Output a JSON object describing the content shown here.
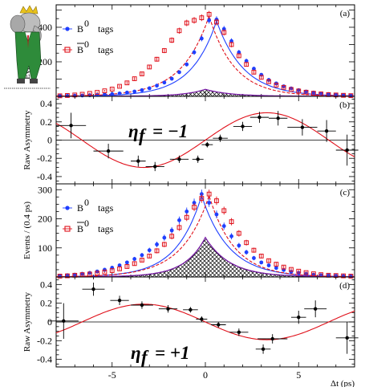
{
  "chart_data": [
    {
      "panel": "(a)",
      "type": "scatter",
      "ylabel": "Events / (0.4 ps)",
      "xlim": [
        -8,
        8
      ],
      "ylim": [
        0,
        530
      ],
      "yticks": [
        200,
        400
      ],
      "xticks": [
        -5,
        0,
        5
      ],
      "show_xtick_labels": false,
      "legend": [
        {
          "label": "B",
          "superscript": "0",
          "bar": false,
          "suffix": "tags",
          "marker": "filled-circle",
          "color": "#1f3fff"
        },
        {
          "label": "B",
          "superscript": "0",
          "bar": true,
          "suffix": "tags",
          "marker": "open-square",
          "color": "#e0101a"
        }
      ],
      "series": [
        {
          "name": "B0 tags",
          "color": "#1f3fff",
          "marker": "filled-circle",
          "x": [
            -7.8,
            -7.4,
            -7,
            -6.6,
            -6.2,
            -5.8,
            -5.4,
            -5,
            -4.6,
            -4.2,
            -3.8,
            -3.4,
            -3,
            -2.6,
            -2.2,
            -1.8,
            -1.4,
            -1,
            -0.6,
            -0.2,
            0.2,
            0.6,
            1,
            1.4,
            1.8,
            2.2,
            2.6,
            3,
            3.4,
            3.8,
            4.2,
            4.6,
            5,
            5.4,
            5.8,
            6.2,
            6.6,
            7,
            7.4,
            7.8
          ],
          "y": [
            2,
            3,
            4,
            5,
            6,
            8,
            10,
            13,
            17,
            22,
            28,
            36,
            47,
            62,
            80,
            102,
            140,
            185,
            255,
            335,
            440,
            445,
            390,
            320,
            255,
            205,
            160,
            125,
            95,
            75,
            58,
            46,
            36,
            28,
            22,
            17,
            13,
            10,
            7,
            5
          ]
        },
        {
          "name": "B0bar tags",
          "color": "#e0101a",
          "marker": "open-square",
          "x": [
            -7.8,
            -7.4,
            -7,
            -6.6,
            -6.2,
            -5.8,
            -5.4,
            -5,
            -4.6,
            -4.2,
            -3.8,
            -3.4,
            -3,
            -2.6,
            -2.2,
            -1.8,
            -1.4,
            -1,
            -0.6,
            -0.2,
            0.2,
            0.6,
            1,
            1.4,
            1.8,
            2.2,
            2.6,
            3,
            3.4,
            3.8,
            4.2,
            4.6,
            5,
            5.4,
            5.8,
            6.2,
            6.6,
            7,
            7.4,
            7.8
          ],
          "y": [
            3,
            5,
            8,
            12,
            17,
            23,
            32,
            42,
            58,
            78,
            102,
            130,
            170,
            215,
            265,
            325,
            380,
            425,
            440,
            455,
            475,
            430,
            370,
            300,
            235,
            185,
            140,
            110,
            85,
            65,
            52,
            40,
            31,
            24,
            18,
            14,
            10,
            8,
            6,
            4
          ]
        }
      ],
      "fit_curves": [
        {
          "series": "B0 tags",
          "style": "solid",
          "color": "#1f3fff"
        },
        {
          "series": "B0bar tags",
          "style": "dashed",
          "color": "#e0101a"
        }
      ],
      "background": {
        "style": "hatched",
        "peak": 40
      }
    },
    {
      "panel": "(b)",
      "type": "scatter",
      "ylabel": "Raw Asymmetry",
      "annotation": {
        "text": "η",
        "subscript": "f",
        "value": "= −1"
      },
      "xlim": [
        -8,
        8
      ],
      "ylim": [
        -0.48,
        0.48
      ],
      "yticks": [
        -0.4,
        -0.2,
        0,
        0.2,
        0.4
      ],
      "ytick_labels": [
        "-0.4",
        "-0.2",
        "0",
        "0.2",
        "0.4"
      ],
      "xticks": [
        -5,
        0,
        5
      ],
      "show_xtick_labels": false,
      "points": [
        {
          "x": -7.2,
          "y": 0.16,
          "xerr": 0.8,
          "yerr": 0.14
        },
        {
          "x": -5.2,
          "y": -0.12,
          "xerr": 0.8,
          "yerr": 0.08
        },
        {
          "x": -3.6,
          "y": -0.23,
          "xerr": 0.4,
          "yerr": 0.06
        },
        {
          "x": -2.7,
          "y": -0.29,
          "xerr": 0.5,
          "yerr": 0.05
        },
        {
          "x": -1.4,
          "y": -0.21,
          "xerr": 0.5,
          "yerr": 0.04
        },
        {
          "x": -0.4,
          "y": -0.21,
          "xerr": 0.3,
          "yerr": 0.04
        },
        {
          "x": 0.1,
          "y": -0.05,
          "xerr": 0.3,
          "yerr": 0.03
        },
        {
          "x": 0.8,
          "y": 0.02,
          "xerr": 0.4,
          "yerr": 0.04
        },
        {
          "x": 2.0,
          "y": 0.15,
          "xerr": 0.5,
          "yerr": 0.05
        },
        {
          "x": 2.9,
          "y": 0.25,
          "xerr": 0.5,
          "yerr": 0.06
        },
        {
          "x": 3.9,
          "y": 0.24,
          "xerr": 0.5,
          "yerr": 0.08
        },
        {
          "x": 5.2,
          "y": 0.14,
          "xerr": 0.8,
          "yerr": 0.09
        },
        {
          "x": 6.5,
          "y": 0.1,
          "xerr": 0.5,
          "yerr": 0.12
        },
        {
          "x": 7.6,
          "y": -0.11,
          "xerr": 0.6,
          "yerr": 0.17
        }
      ],
      "fit": {
        "function": "A*sin(dm*t)",
        "amplitude": 0.3,
        "dm": 0.475,
        "color": "#e0101a"
      }
    },
    {
      "panel": "(c)",
      "type": "scatter",
      "ylabel": "Events / (0.4 ps)",
      "xlim": [
        -8,
        8
      ],
      "ylim": [
        0,
        320
      ],
      "yticks": [
        100,
        200,
        300
      ],
      "xticks": [
        -5,
        0,
        5
      ],
      "show_xtick_labels": false,
      "legend": [
        {
          "label": "B",
          "superscript": "0",
          "bar": false,
          "suffix": "tags",
          "marker": "filled-circle",
          "color": "#1f3fff"
        },
        {
          "label": "B",
          "superscript": "0",
          "bar": true,
          "suffix": "tags",
          "marker": "open-square",
          "color": "#e0101a"
        }
      ],
      "series": [
        {
          "name": "B0 tags",
          "color": "#1f3fff",
          "marker": "filled-circle",
          "x": [
            -7.8,
            -7.4,
            -7,
            -6.6,
            -6.2,
            -5.8,
            -5.4,
            -5,
            -4.6,
            -4.2,
            -3.8,
            -3.4,
            -3,
            -2.6,
            -2.2,
            -1.8,
            -1.4,
            -1,
            -0.6,
            -0.2,
            0.2,
            0.6,
            1,
            1.4,
            1.8,
            2.2,
            2.6,
            3,
            3.4,
            3.8,
            4.2,
            4.6,
            5,
            5.4,
            5.8,
            6.2,
            6.6,
            7,
            7.4,
            7.8
          ],
          "y": [
            4,
            6,
            8,
            11,
            14,
            19,
            25,
            32,
            40,
            50,
            62,
            75,
            92,
            112,
            135,
            160,
            195,
            225,
            255,
            285,
            255,
            215,
            175,
            140,
            108,
            85,
            65,
            50,
            40,
            31,
            24,
            18,
            14,
            11,
            8,
            6,
            5,
            4,
            3,
            2
          ]
        },
        {
          "name": "B0bar tags",
          "color": "#e0101a",
          "marker": "open-square",
          "x": [
            -7.8,
            -7.4,
            -7,
            -6.6,
            -6.2,
            -5.8,
            -5.4,
            -5,
            -4.6,
            -4.2,
            -3.8,
            -3.4,
            -3,
            -2.6,
            -2.2,
            -1.8,
            -1.4,
            -1,
            -0.6,
            -0.2,
            0.2,
            0.6,
            1,
            1.4,
            1.8,
            2.2,
            2.6,
            3,
            3.4,
            3.8,
            4.2,
            4.6,
            5,
            5.4,
            5.8,
            6.2,
            6.6,
            7,
            7.4,
            7.8
          ],
          "y": [
            3,
            4,
            6,
            8,
            10,
            13,
            17,
            22,
            28,
            36,
            46,
            58,
            72,
            90,
            112,
            140,
            170,
            205,
            240,
            270,
            285,
            262,
            228,
            190,
            150,
            118,
            92,
            72,
            56,
            44,
            34,
            26,
            20,
            15,
            11,
            8,
            6,
            5,
            4,
            3
          ]
        }
      ],
      "fit_curves": [
        {
          "series": "B0 tags",
          "style": "solid",
          "color": "#1f3fff"
        },
        {
          "series": "B0bar tags",
          "style": "dashed",
          "color": "#e0101a"
        }
      ],
      "background": {
        "style": "hatched",
        "peak": 135
      }
    },
    {
      "panel": "(d)",
      "type": "scatter",
      "ylabel": "Raw Asymmetry",
      "annotation": {
        "text": "η",
        "subscript": "f",
        "value": "= +1"
      },
      "xlim": [
        -8,
        8
      ],
      "ylim": [
        -0.48,
        0.48
      ],
      "yticks": [
        -0.4,
        -0.2,
        0,
        0.2,
        0.4
      ],
      "ytick_labels": [
        "-0.4",
        "-0.2",
        "0",
        "0.2",
        "0.4"
      ],
      "xticks": [
        -5,
        0,
        5
      ],
      "xtick_labels": [
        "-5",
        "0",
        "5"
      ],
      "xlabel": "Δt (ps)",
      "points": [
        {
          "x": -7.6,
          "y": 0.01,
          "xerr": 0.8,
          "yerr": 0.19
        },
        {
          "x": -6.0,
          "y": 0.35,
          "xerr": 0.6,
          "yerr": 0.07
        },
        {
          "x": -4.6,
          "y": 0.23,
          "xerr": 0.5,
          "yerr": 0.05
        },
        {
          "x": -3.4,
          "y": 0.18,
          "xerr": 0.6,
          "yerr": 0.04
        },
        {
          "x": -2.0,
          "y": 0.14,
          "xerr": 0.5,
          "yerr": 0.04
        },
        {
          "x": -0.8,
          "y": 0.13,
          "xerr": 0.4,
          "yerr": 0.03
        },
        {
          "x": -0.2,
          "y": 0.03,
          "xerr": 0.3,
          "yerr": 0.03
        },
        {
          "x": 0.7,
          "y": -0.03,
          "xerr": 0.4,
          "yerr": 0.03
        },
        {
          "x": 1.8,
          "y": -0.11,
          "xerr": 0.5,
          "yerr": 0.04
        },
        {
          "x": 3.1,
          "y": -0.29,
          "xerr": 0.4,
          "yerr": 0.05
        },
        {
          "x": 3.6,
          "y": -0.18,
          "xerr": 0.8,
          "yerr": 0.05
        },
        {
          "x": 5.0,
          "y": 0.05,
          "xerr": 0.4,
          "yerr": 0.07
        },
        {
          "x": 5.9,
          "y": 0.14,
          "xerr": 0.6,
          "yerr": 0.09
        },
        {
          "x": 7.6,
          "y": -0.17,
          "xerr": 0.6,
          "yerr": 0.17
        }
      ],
      "fit": {
        "function": "-A*sin(dm*t)",
        "amplitude": 0.19,
        "dm": 0.475,
        "color": "#e0101a"
      }
    }
  ],
  "logo": {
    "name": "babar-elephant-logo",
    "fine_print": "illegible"
  }
}
